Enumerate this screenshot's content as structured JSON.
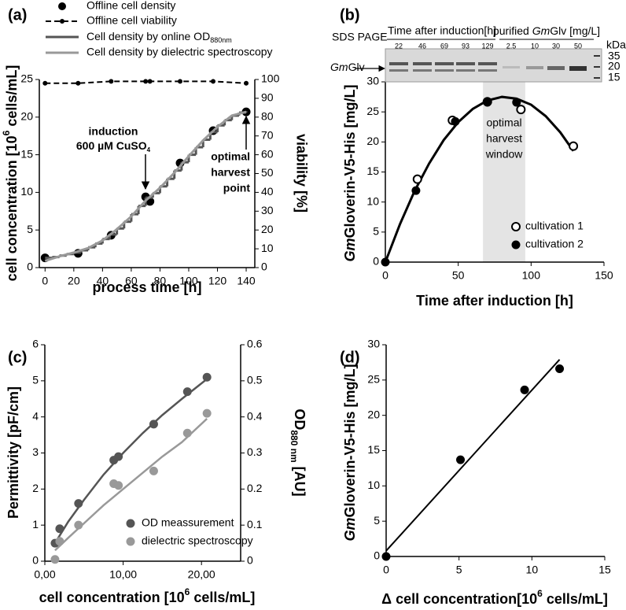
{
  "chart_data": [
    {
      "type": "line",
      "panel_label": "(a)",
      "xlabel": "process time [h]",
      "ylabel": [
        "cell concentration [10",
        "6",
        " cells/mL]"
      ],
      "y2label": "viability [%]",
      "xlim": [
        -4,
        146
      ],
      "xticks": [
        0,
        20,
        40,
        60,
        80,
        100,
        120,
        140
      ],
      "ylim": [
        0,
        25
      ],
      "yticks": [
        0,
        5,
        10,
        15,
        20,
        25
      ],
      "y2lim": [
        0,
        100
      ],
      "y2ticks": [
        0,
        10,
        20,
        30,
        40,
        50,
        60,
        70,
        80,
        90,
        100
      ],
      "annotations": [
        "induction",
        [
          "600 µM CuSO",
          "4"
        ],
        "optimal",
        "harvest",
        "point"
      ],
      "series": [
        {
          "name": "Offline cell density",
          "color": "#000000",
          "marker": "filled",
          "line": "none",
          "x": [
            0,
            23,
            46,
            70,
            73,
            94,
            117,
            140
          ],
          "values": [
            1.3,
            1.9,
            4.3,
            9.4,
            8.8,
            13.9,
            18.2,
            20.7
          ]
        },
        {
          "name": "Offline cell viability",
          "color": "#000000",
          "marker": "dot",
          "line": "dashed",
          "axis": "y2",
          "x": [
            0,
            23,
            46,
            70,
            73,
            94,
            117,
            140
          ],
          "values": [
            98,
            98,
            99,
            99,
            99,
            99,
            99,
            98
          ]
        },
        {
          "name": [
            "Cell density by online OD",
            "880nm"
          ],
          "color": "#555555",
          "marker": "none",
          "line": "step",
          "x": [
            0,
            5,
            10,
            15,
            20,
            25,
            30,
            35,
            40,
            45,
            50,
            55,
            60,
            65,
            70,
            75,
            80,
            85,
            90,
            95,
            100,
            105,
            110,
            115,
            120,
            125,
            130,
            135,
            140
          ],
          "values": [
            1.3,
            1.4,
            1.6,
            1.8,
            2.0,
            2.3,
            2.7,
            3.2,
            3.8,
            4.4,
            5.2,
            6.1,
            7.1,
            8.2,
            9.3,
            9.9,
            10.8,
            11.8,
            12.9,
            14.0,
            15.0,
            16.0,
            17.0,
            18.0,
            18.9,
            19.6,
            20.2,
            20.6,
            20.8
          ]
        },
        {
          "name": "Cell density by dielectric spectroscopy",
          "color": "#999999",
          "marker": "none",
          "line": "solid",
          "x": [
            0,
            10,
            20,
            30,
            40,
            50,
            60,
            70,
            80,
            90,
            100,
            110,
            120,
            130,
            140
          ],
          "values": [
            0.9,
            1.5,
            2.0,
            2.6,
            3.6,
            5.1,
            6.8,
            8.9,
            10.6,
            12.6,
            14.8,
            16.9,
            18.7,
            20.2,
            20.7
          ]
        }
      ]
    },
    {
      "type": "scatter",
      "panel_label": "(b)",
      "xlabel": "Time after induction [h]",
      "ylabel": [
        "Gm",
        "Gloverin-V5-His [mg/L]"
      ],
      "xlim": [
        0,
        150
      ],
      "xticks": [
        0,
        50,
        100,
        150
      ],
      "ylim": [
        0,
        30
      ],
      "yticks": [
        0,
        5,
        10,
        15,
        20,
        25,
        30
      ],
      "band": [
        67,
        96
      ],
      "band_color": "#e4e4e4",
      "annotations": [
        "optimal",
        "harvest",
        "window"
      ],
      "gel": {
        "title": "SDS PAGE",
        "group1": "Time after induction[h]",
        "lanes1": [
          "22",
          "46",
          "69",
          "93",
          "129"
        ],
        "group2": [
          "purified ",
          "Gm",
          "Glv [mg/L]"
        ],
        "lanes2": [
          "2.5",
          "10",
          "30",
          "50"
        ],
        "unit": "kDa",
        "markers": [
          "35",
          "20",
          "15"
        ],
        "band_label": [
          "Gm",
          "Glv"
        ]
      },
      "series": [
        {
          "color": "#000000",
          "marker": "none",
          "line": "solid",
          "x": [
            0,
            10,
            20,
            30,
            40,
            50,
            60,
            70,
            80,
            90,
            100,
            110,
            120,
            129
          ],
          "values": [
            0,
            6.3,
            11.8,
            16.4,
            20.3,
            23.3,
            25.5,
            26.9,
            27.5,
            27.2,
            26.2,
            24.3,
            21.6,
            18.5
          ]
        },
        {
          "name": "cultivation 1",
          "color": "#000000",
          "marker": "open",
          "line": "none",
          "x": [
            22,
            46,
            70,
            93,
            129
          ],
          "values": [
            13.8,
            23.6,
            26.7,
            25.4,
            19.3
          ]
        },
        {
          "name": "cultivation 2",
          "color": "#000000",
          "marker": "filled",
          "line": "none",
          "x": [
            0,
            21,
            48,
            70,
            90
          ],
          "values": [
            0,
            11.9,
            23.4,
            26.6,
            26.6
          ]
        }
      ]
    },
    {
      "type": "scatter",
      "panel_label": "(c)",
      "xlabel": [
        "cell concentration [10",
        "6",
        " cells/mL]"
      ],
      "ylabel": "Permittivity [pF/cm]",
      "y2label": [
        "OD",
        "880 nm",
        " [AU]"
      ],
      "xlim": [
        0,
        25
      ],
      "xticks": [
        {
          "value": 0,
          "label": "0,00"
        },
        {
          "value": 10,
          "label": "10,00"
        },
        {
          "value": 20,
          "label": "20,00"
        }
      ],
      "ylim": [
        0,
        6
      ],
      "yticks": [
        0,
        1,
        2,
        3,
        4,
        5,
        6
      ],
      "y2lim": [
        0,
        0.6
      ],
      "y2ticks": [
        0,
        0.1,
        0.2,
        0.3,
        0.4,
        0.5,
        0.6
      ],
      "series": [
        {
          "color": "#555555",
          "marker": "none",
          "line": "solid",
          "axis": "y2",
          "x": [
            1.3,
            3,
            5,
            7.5,
            10,
            12.5,
            15,
            17.5,
            20.7
          ],
          "values": [
            0.05,
            0.11,
            0.17,
            0.24,
            0.3,
            0.355,
            0.405,
            0.45,
            0.505
          ]
        },
        {
          "color": "#999999",
          "marker": "none",
          "line": "solid",
          "x": [
            1.3,
            3,
            5,
            7.5,
            10,
            12.5,
            15,
            17.5,
            20.7
          ],
          "values": [
            0.3,
            0.65,
            1.05,
            1.55,
            2.0,
            2.45,
            2.9,
            3.3,
            3.95
          ]
        },
        {
          "name": "OD meassurement",
          "color": "#555555",
          "marker": "filled",
          "line": "none",
          "axis": "y2",
          "x": [
            1.3,
            1.9,
            4.3,
            8.8,
            9.4,
            13.9,
            18.2,
            20.7
          ],
          "values": [
            0.05,
            0.09,
            0.16,
            0.28,
            0.29,
            0.38,
            0.47,
            0.51
          ]
        },
        {
          "name": "dielectric spectroscopy",
          "color": "#999999",
          "marker": "filled",
          "line": "none",
          "x": [
            1.3,
            1.9,
            4.3,
            8.8,
            9.4,
            13.9,
            18.2,
            20.7
          ],
          "values": [
            0.05,
            0.55,
            1.0,
            2.15,
            2.1,
            2.5,
            3.55,
            4.1
          ]
        }
      ]
    },
    {
      "type": "scatter",
      "panel_label": "(d)",
      "xlabel": [
        "Δ cell concentration[10",
        "6",
        " cells/mL]"
      ],
      "ylabel": [
        "Gm",
        "Gloverin-V5-His [mg/L]"
      ],
      "xlim": [
        0,
        15
      ],
      "xticks": [
        0,
        5,
        10,
        15
      ],
      "ylim": [
        0,
        30
      ],
      "yticks": [
        0,
        5,
        10,
        15,
        20,
        25,
        30
      ],
      "series": [
        {
          "color": "#000000",
          "marker": "none",
          "line": "solid",
          "x": [
            0,
            11.9
          ],
          "values": [
            0.8,
            27.9
          ]
        },
        {
          "color": "#000000",
          "marker": "filled",
          "line": "none",
          "x": [
            0,
            5.1,
            9.5,
            11.9
          ],
          "values": [
            0,
            13.7,
            23.6,
            26.6
          ]
        }
      ]
    }
  ]
}
